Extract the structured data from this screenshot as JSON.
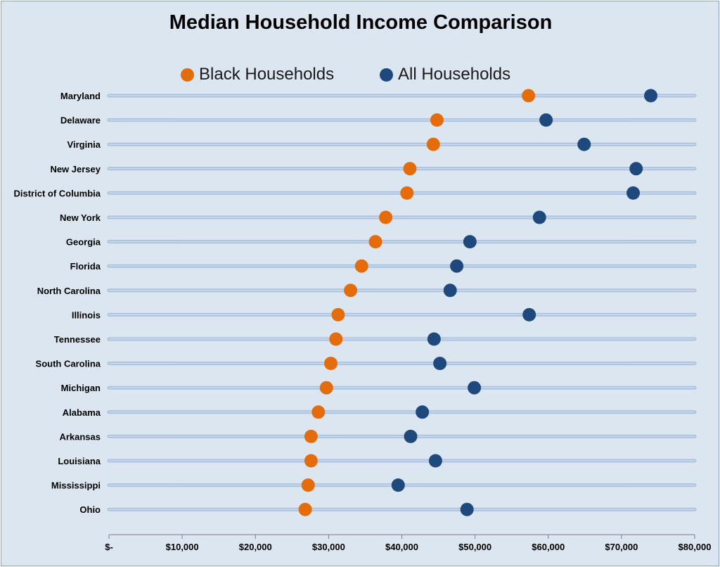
{
  "chart_data": {
    "type": "scatter",
    "title": "Median Household Income Comparison",
    "xlabel": "",
    "ylabel": "",
    "xlim": [
      0,
      80000
    ],
    "x_ticks": [
      0,
      10000,
      20000,
      30000,
      40000,
      50000,
      60000,
      70000,
      80000
    ],
    "x_tick_labels": [
      "$-",
      "$10,000",
      "$20,000",
      "$30,000",
      "$40,000",
      "$50,000",
      "$60,000",
      "$70,000",
      "$80,000"
    ],
    "legend_position": "top",
    "categories": [
      "Maryland",
      "Delaware",
      "Virginia",
      "New Jersey",
      "District of Columbia",
      "New York",
      "Georgia",
      "Florida",
      "North Carolina",
      "Illinois",
      "Tennessee",
      "South Carolina",
      "Michigan",
      "Alabama",
      "Arkansas",
      "Louisiana",
      "Mississippi",
      "Ohio"
    ],
    "series": [
      {
        "name": "Black Households",
        "color": "#e46c0a",
        "values": [
          57300,
          44800,
          44300,
          41100,
          40700,
          37800,
          36400,
          34500,
          33000,
          31300,
          31000,
          30300,
          29700,
          28600,
          27600,
          27600,
          27200,
          26800
        ]
      },
      {
        "name": "All Households",
        "color": "#1f497d",
        "values": [
          74000,
          59700,
          64900,
          72000,
          71600,
          58800,
          49300,
          47500,
          46600,
          57400,
          44400,
          45200,
          49900,
          42800,
          41200,
          44600,
          39500,
          48900
        ]
      }
    ]
  }
}
